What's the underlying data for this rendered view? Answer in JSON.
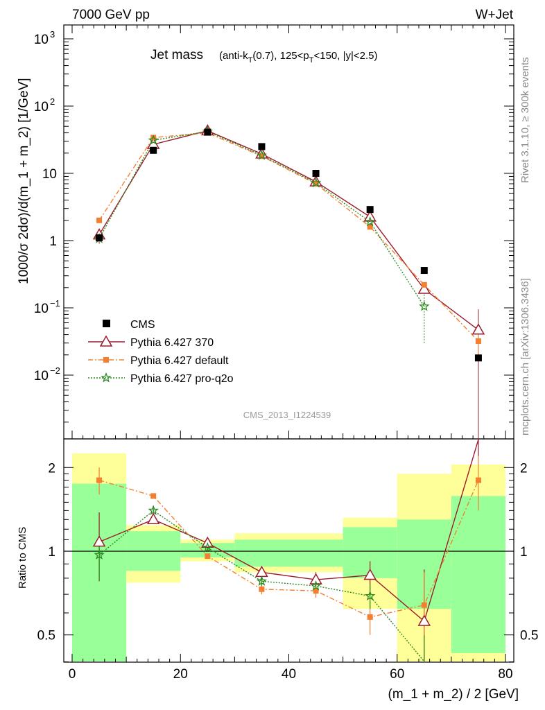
{
  "header": {
    "left": "7000 GeV pp",
    "right": "W+Jet"
  },
  "side": {
    "rivet": "Rivet 3.1.10, ≥ 300k events",
    "mcplots": "mcplots.cern.ch [arXiv:1306.3436]"
  },
  "watermark": "CMS_2013_I1224539",
  "chart_data": {
    "type": "line",
    "title": "Jet mass",
    "subtitle": "(anti-k_T(0.7), 125<p_T<150, |y|<2.5)",
    "xlabel": "(m_1 + m_2) / 2 [GeV]",
    "ylabel": "1000/σ 2dσ)/d(m_1 + m_2) [1/GeV]",
    "ratio_ylabel": "Ratio to CMS",
    "xlim": [
      0,
      80
    ],
    "ylim": [
      0.001,
      1500
    ],
    "ylog": true,
    "ratio_ylim": [
      0.35,
      2.3
    ],
    "x_ticks": [
      "0",
      "20",
      "40",
      "60",
      "80"
    ],
    "y_ticks": [
      "10^-2",
      "10^-1",
      "1",
      "10",
      "10^2",
      "10^3"
    ],
    "ratio_ticks": [
      "0.5",
      "1",
      "2"
    ],
    "bins": [
      [
        0,
        10
      ],
      [
        10,
        20
      ],
      [
        20,
        30
      ],
      [
        30,
        40
      ],
      [
        40,
        50
      ],
      [
        50,
        60
      ],
      [
        60,
        70
      ],
      [
        70,
        80
      ]
    ],
    "band_green": [
      [
        0.35,
        1.75
      ],
      [
        0.85,
        1.18
      ],
      [
        0.95,
        1.07
      ],
      [
        0.88,
        1.1
      ],
      [
        0.88,
        1.1
      ],
      [
        0.8,
        1.22
      ],
      [
        0.62,
        1.3
      ],
      [
        0.43,
        1.58
      ]
    ],
    "band_yellow": [
      [
        0.35,
        2.25
      ],
      [
        0.77,
        1.24
      ],
      [
        0.92,
        1.1
      ],
      [
        0.84,
        1.16
      ],
      [
        0.84,
        1.16
      ],
      [
        0.62,
        1.32
      ],
      [
        0.35,
        1.9
      ],
      [
        0.35,
        2.05
      ]
    ],
    "legend": [
      {
        "label": "CMS",
        "style": "data"
      },
      {
        "label": "Pythia 6.427 370",
        "style": "triangle"
      },
      {
        "label": "Pythia 6.427 default",
        "style": "square"
      },
      {
        "label": "Pythia 6.427 pro-q2o",
        "style": "star"
      }
    ],
    "data": {
      "name": "CMS",
      "x": [
        5,
        15,
        25,
        35,
        45,
        55,
        65,
        75
      ],
      "y": [
        1.1,
        22,
        41,
        25,
        10,
        2.9,
        0.36,
        0.018
      ]
    },
    "series": [
      {
        "name": "Pythia 6.427 370",
        "color": "#9b1c2b",
        "x": [
          5,
          15,
          25,
          35,
          45,
          55,
          65,
          75
        ],
        "y": [
          1.22,
          27,
          43,
          19.5,
          7.5,
          2.25,
          0.19,
          0.047
        ],
        "ratio": [
          1.08,
          1.3,
          1.07,
          0.84,
          0.79,
          0.82,
          0.56,
          2.6
        ],
        "ratio_err": [
          0.3,
          0.04,
          0.03,
          0.04,
          0.05,
          0.1,
          0.3,
          0.4
        ]
      },
      {
        "name": "Pythia 6.427 default",
        "color": "#f28030",
        "x": [
          5,
          15,
          25,
          35,
          45,
          55,
          65,
          75
        ],
        "y": [
          2.0,
          34,
          40,
          18,
          7.0,
          1.6,
          0.22,
          0.032
        ],
        "ratio": [
          1.8,
          1.58,
          0.96,
          0.73,
          0.72,
          0.58,
          0.64,
          1.8
        ],
        "ratio_err": [
          0.2,
          0.03,
          0.02,
          0.03,
          0.04,
          0.08,
          0.2,
          0.4
        ]
      },
      {
        "name": "Pythia 6.427 pro-q2o",
        "color": "#2a8a1e",
        "x": [
          5,
          15,
          25,
          35,
          45,
          55,
          65
        ],
        "y": [
          1.07,
          31,
          42,
          18.5,
          7.2,
          1.9,
          0.105
        ],
        "ratio": [
          0.97,
          1.4,
          1.03,
          0.78,
          0.75,
          0.69,
          0.3
        ],
        "ratio_err": [
          0.18,
          0.04,
          0.03,
          0.03,
          0.04,
          0.07,
          0.2
        ]
      }
    ]
  }
}
